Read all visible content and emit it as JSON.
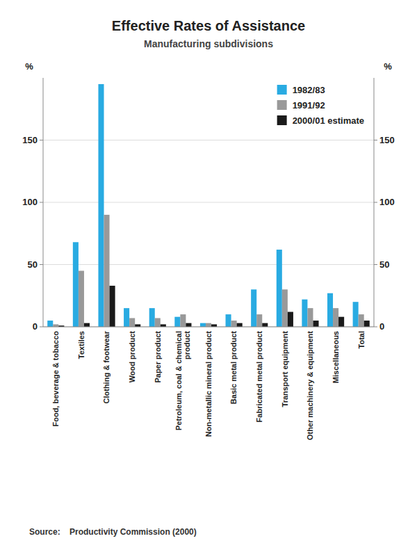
{
  "chart_data": {
    "type": "bar",
    "title": "Effective Rates of Assistance",
    "subtitle": "Manufacturing subdivisions",
    "y_label": "%",
    "y2_label": "%",
    "source": "Source:    Productivity Commission (2000)",
    "categories": [
      "Food, beverage & tobacco",
      "Textiles",
      "Clothing & footwear",
      "Wood product",
      "Paper product",
      "Petroleum, coal & chemical\nproduct",
      "Non-metallic mineral product",
      "Basic metal product",
      "Fabricated metal product",
      "Transport equipment",
      "Other machinery & equipment",
      "Miscellaneous",
      "Total"
    ],
    "series": [
      {
        "name": "1982/83",
        "color": "#29ABE2",
        "values": [
          5,
          68,
          195,
          15,
          15,
          8,
          3,
          10,
          30,
          62,
          22,
          27,
          20
        ]
      },
      {
        "name": "1991/92",
        "color": "#999999",
        "values": [
          2,
          45,
          90,
          7,
          7,
          10,
          3,
          5,
          10,
          30,
          15,
          15,
          10
        ]
      },
      {
        "name": "2000/01 estimate",
        "color": "#1a1a1a",
        "values": [
          1,
          3,
          33,
          2,
          2,
          3,
          2,
          3,
          3,
          12,
          5,
          8,
          5
        ]
      }
    ],
    "ylim": [
      0,
      200
    ],
    "yticks": [
      0,
      50,
      100,
      150
    ],
    "y2lim": [
      0,
      200
    ],
    "y2ticks": [
      0,
      50,
      100,
      150
    ],
    "grid": true,
    "legend": "top-right"
  }
}
